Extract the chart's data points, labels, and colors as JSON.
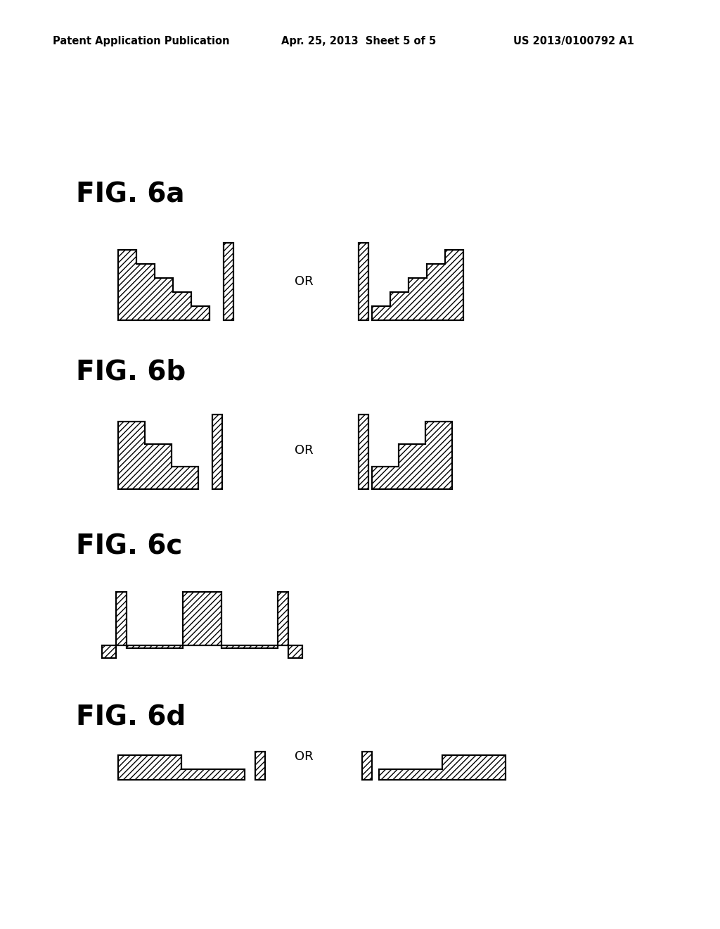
{
  "header_left": "Patent Application Publication",
  "header_center": "Apr. 25, 2013  Sheet 5 of 5",
  "header_right": "US 2013/0100792 A1",
  "bg_color": "#ffffff",
  "line_color": "#000000"
}
